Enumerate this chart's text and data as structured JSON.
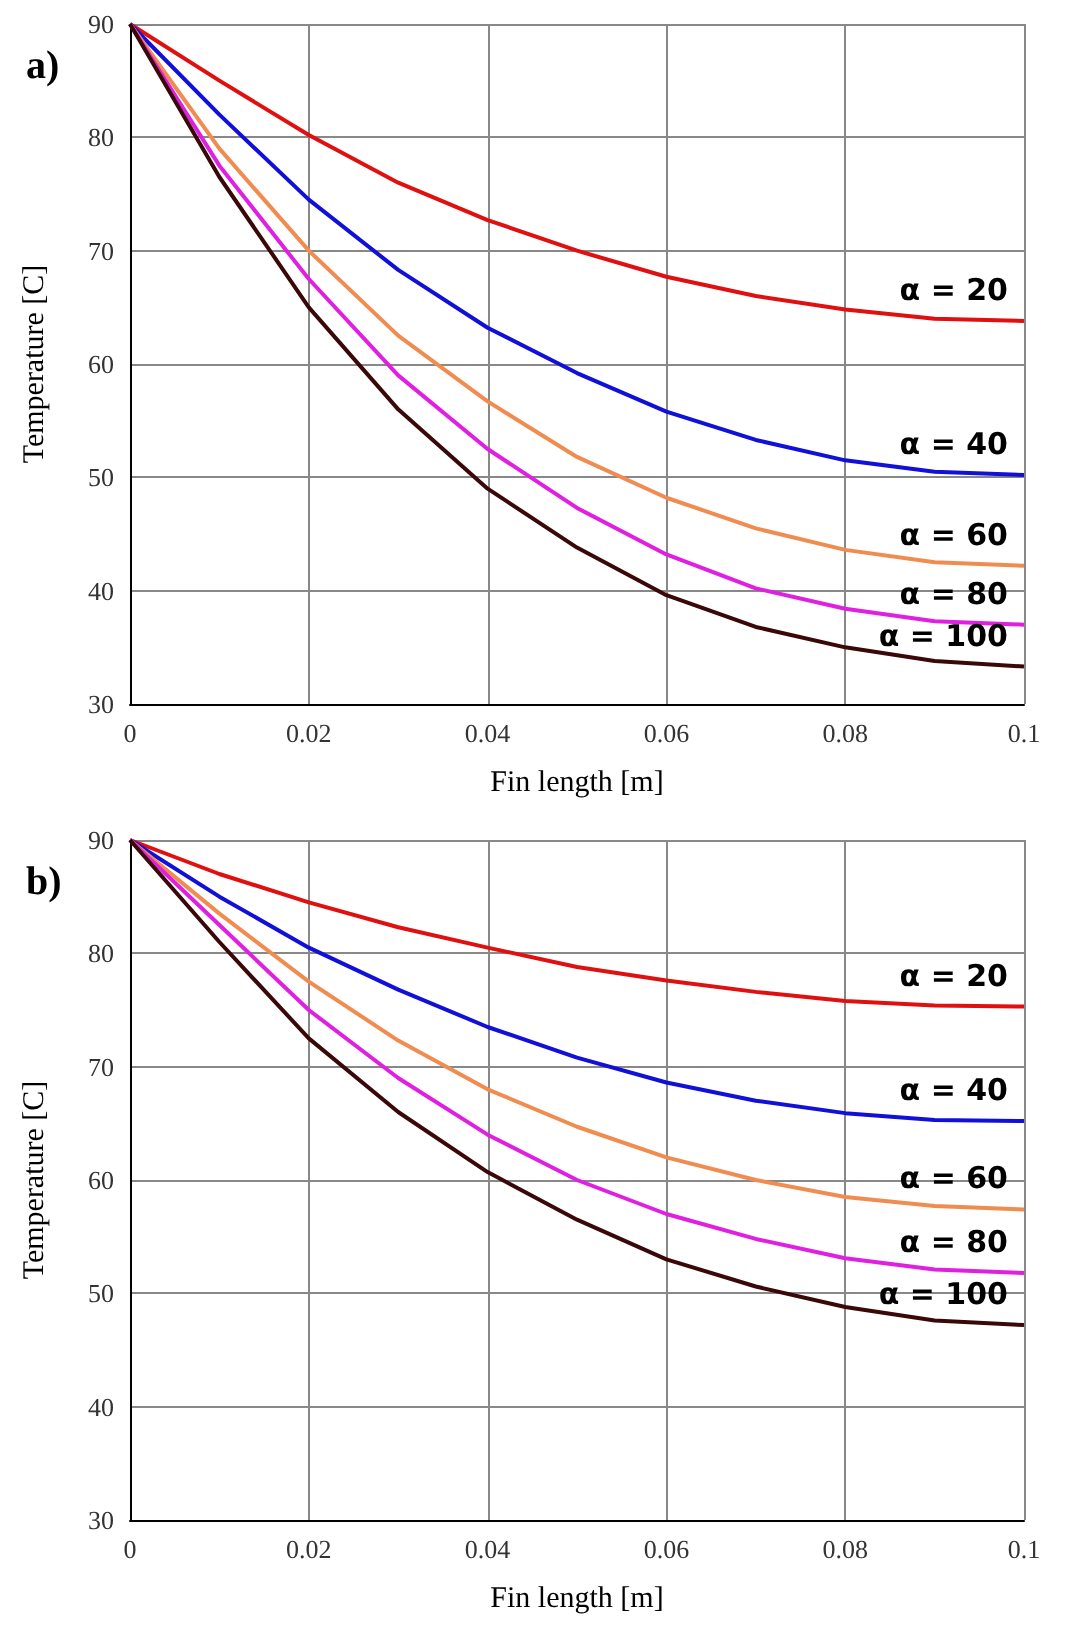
{
  "chart_data": [
    {
      "type": "line",
      "title": "a)",
      "xlabel": "Fin length [m]",
      "ylabel": "Temperature [C]",
      "x": [
        0,
        0.01,
        0.02,
        0.03,
        0.04,
        0.05,
        0.06,
        0.07,
        0.08,
        0.09,
        0.1
      ],
      "series": [
        {
          "name": "α = 20",
          "color": "#e01010",
          "values": [
            90,
            85,
            80.2,
            76,
            72.7,
            70,
            67.7,
            66,
            64.8,
            64,
            63.8
          ]
        },
        {
          "name": "α = 40",
          "color": "#1010d8",
          "values": [
            90,
            82,
            74.5,
            68.3,
            63.2,
            59.2,
            55.8,
            53.3,
            51.5,
            50.5,
            50.2
          ]
        },
        {
          "name": "α = 60",
          "color": "#f08c50",
          "values": [
            90,
            79,
            70,
            62.5,
            56.7,
            51.8,
            48.2,
            45.5,
            43.6,
            42.5,
            42.2
          ]
        },
        {
          "name": "α = 80",
          "color": "#e020e0",
          "values": [
            90,
            77.5,
            67.5,
            59,
            52.5,
            47.3,
            43.2,
            40.2,
            38.4,
            37.3,
            37
          ]
        },
        {
          "name": "α = 100",
          "color": "#3a0808",
          "values": [
            90,
            76.5,
            65,
            56,
            49,
            43.8,
            39.6,
            36.8,
            35,
            33.8,
            33.3
          ]
        }
      ],
      "xlim": [
        0,
        0.1
      ],
      "xticks": [
        0,
        0.02,
        0.04,
        0.06,
        0.08,
        0.1
      ],
      "ylim": [
        30,
        90
      ],
      "yticks": [
        30,
        40,
        50,
        60,
        70,
        80,
        90
      ],
      "grid": true
    },
    {
      "type": "line",
      "title": "b)",
      "xlabel": "Fin length [m]",
      "ylabel": "Temperature [C]",
      "x": [
        0,
        0.01,
        0.02,
        0.03,
        0.04,
        0.05,
        0.06,
        0.07,
        0.08,
        0.09,
        0.1
      ],
      "series": [
        {
          "name": "α = 20",
          "color": "#e01010",
          "values": [
            90,
            87,
            84.5,
            82.3,
            80.5,
            78.8,
            77.6,
            76.6,
            75.8,
            75.4,
            75.3
          ]
        },
        {
          "name": "α = 40",
          "color": "#1010d8",
          "values": [
            90,
            85,
            80.5,
            76.8,
            73.5,
            70.8,
            68.6,
            67,
            65.9,
            65.3,
            65.2
          ]
        },
        {
          "name": "α = 60",
          "color": "#f08c50",
          "values": [
            90,
            83.5,
            77.5,
            72.3,
            68,
            64.7,
            62,
            60,
            58.5,
            57.7,
            57.4
          ]
        },
        {
          "name": "α = 80",
          "color": "#e020e0",
          "values": [
            90,
            82.5,
            75,
            69,
            64,
            60,
            57,
            54.8,
            53.1,
            52.1,
            51.8
          ]
        },
        {
          "name": "α = 100",
          "color": "#3a0808",
          "values": [
            90,
            81,
            72.5,
            66,
            60.7,
            56.5,
            53,
            50.6,
            48.8,
            47.6,
            47.2
          ]
        }
      ],
      "xlim": [
        0,
        0.1
      ],
      "xticks": [
        0,
        0.02,
        0.04,
        0.06,
        0.08,
        0.1
      ],
      "ylim": [
        30,
        90
      ],
      "yticks": [
        30,
        40,
        50,
        60,
        70,
        80,
        90
      ],
      "grid": true
    }
  ]
}
